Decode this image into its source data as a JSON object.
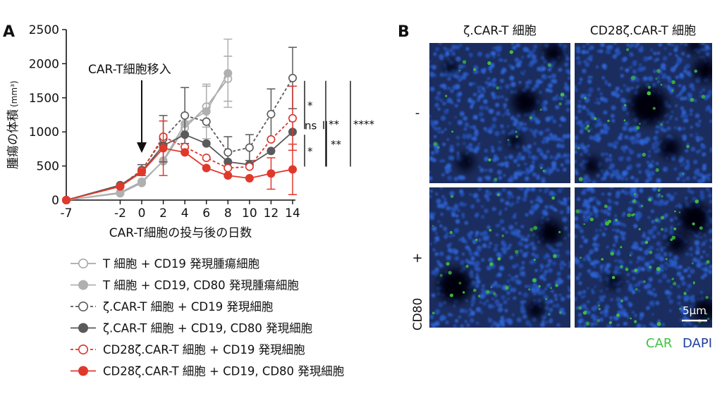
{
  "panel_a_label": "A",
  "panel_b_label": "B",
  "chart_data": {
    "type": "line",
    "ylabel": "腫瘍の体積",
    "ylabel_unit": "(mm³)",
    "xlabel": "CAR-T細胞の投与後の日数",
    "annotation": "CAR-T細胞移入",
    "annotation_day": 0,
    "ylim": [
      0,
      2500
    ],
    "yticks": [
      0,
      500,
      1000,
      1500,
      2000,
      2500
    ],
    "xticks": [
      -7,
      -2,
      0,
      2,
      4,
      6,
      8,
      10,
      12,
      14
    ],
    "series": [
      {
        "name": "T 細胞 + CD19 発現腫瘍細胞",
        "color": "#a8a8a8",
        "filled": false,
        "dashed": false,
        "x": [
          -7,
          -2,
          0,
          2,
          4,
          6,
          8
        ],
        "y": [
          0,
          110,
          270,
          570,
          1060,
          1370,
          1780
        ],
        "err": [
          0,
          0,
          0,
          0,
          0,
          300,
          330
        ]
      },
      {
        "name": "T 細胞 + CD19, CD80 発現腫瘍細胞",
        "color": "#b0b0b0",
        "filled": true,
        "dashed": false,
        "x": [
          -7,
          -2,
          0,
          2,
          4,
          6,
          8
        ],
        "y": [
          0,
          100,
          250,
          580,
          1120,
          1300,
          1860
        ],
        "err": [
          0,
          0,
          0,
          0,
          0,
          400,
          500
        ]
      },
      {
        "name": "ζ.CAR-T 細胞 + CD19 発現細胞",
        "color": "#5a5a5a",
        "filled": false,
        "dashed": true,
        "x": [
          -7,
          -2,
          0,
          2,
          4,
          6,
          8,
          10,
          12,
          14
        ],
        "y": [
          0,
          210,
          440,
          900,
          1240,
          1150,
          700,
          770,
          1260,
          1790
        ],
        "err": [
          0,
          0,
          80,
          340,
          410,
          0,
          230,
          190,
          370,
          450
        ]
      },
      {
        "name": "ζ.CAR-T 細胞 + CD19, CD80 発現細胞",
        "color": "#5a5a5a",
        "filled": true,
        "dashed": false,
        "x": [
          -7,
          -2,
          0,
          2,
          4,
          6,
          8,
          10,
          12,
          14
        ],
        "y": [
          0,
          220,
          420,
          800,
          960,
          830,
          560,
          520,
          720,
          1000
        ],
        "err": [
          0,
          0,
          0,
          0,
          0,
          0,
          0,
          0,
          0,
          0
        ]
      },
      {
        "name": "CD28ζ.CAR-T 細胞 + CD19 発現細胞",
        "color": "#d9342b",
        "filled": false,
        "dashed": true,
        "x": [
          -7,
          -2,
          0,
          2,
          4,
          6,
          8,
          10,
          12,
          14
        ],
        "y": [
          0,
          200,
          430,
          930,
          780,
          620,
          470,
          490,
          890,
          1200
        ],
        "err": [
          0,
          0,
          0,
          0,
          0,
          0,
          0,
          0,
          0,
          470
        ]
      },
      {
        "name": "CD28ζ.CAR-T 細胞 + CD19, CD80 発現細胞",
        "color": "#e0392c",
        "filled": true,
        "dashed": false,
        "x": [
          -7,
          -2,
          0,
          2,
          4,
          6,
          8,
          10,
          12,
          14
        ],
        "y": [
          0,
          200,
          410,
          760,
          700,
          470,
          360,
          320,
          390,
          450
        ],
        "err": [
          0,
          0,
          0,
          400,
          0,
          0,
          0,
          0,
          230,
          370
        ]
      }
    ],
    "significance": [
      {
        "label": "*",
        "y1": 1790,
        "y2": 1000
      },
      {
        "label": "**",
        "y1": 1790,
        "y2": 450
      },
      {
        "label": "ns",
        "y1": 1200,
        "y2": 1000
      },
      {
        "label": "*",
        "y1": 1000,
        "y2": 450
      },
      {
        "label": "**",
        "y1": 1200,
        "y2": 450
      },
      {
        "label": "****",
        "y1": 1790,
        "y2": 450
      }
    ]
  },
  "panel_b": {
    "col_headers": [
      "ζ.CAR-T 細胞",
      "CD28ζ.CAR-T 細胞"
    ],
    "row_labels": [
      "-",
      "+"
    ],
    "row_group_label": "CD80",
    "scale_bar": "5μm",
    "stain_car": "CAR",
    "stain_dapi": "DAPI",
    "color_car": "#3fc23f",
    "color_dapi": "#1f3f9c"
  }
}
